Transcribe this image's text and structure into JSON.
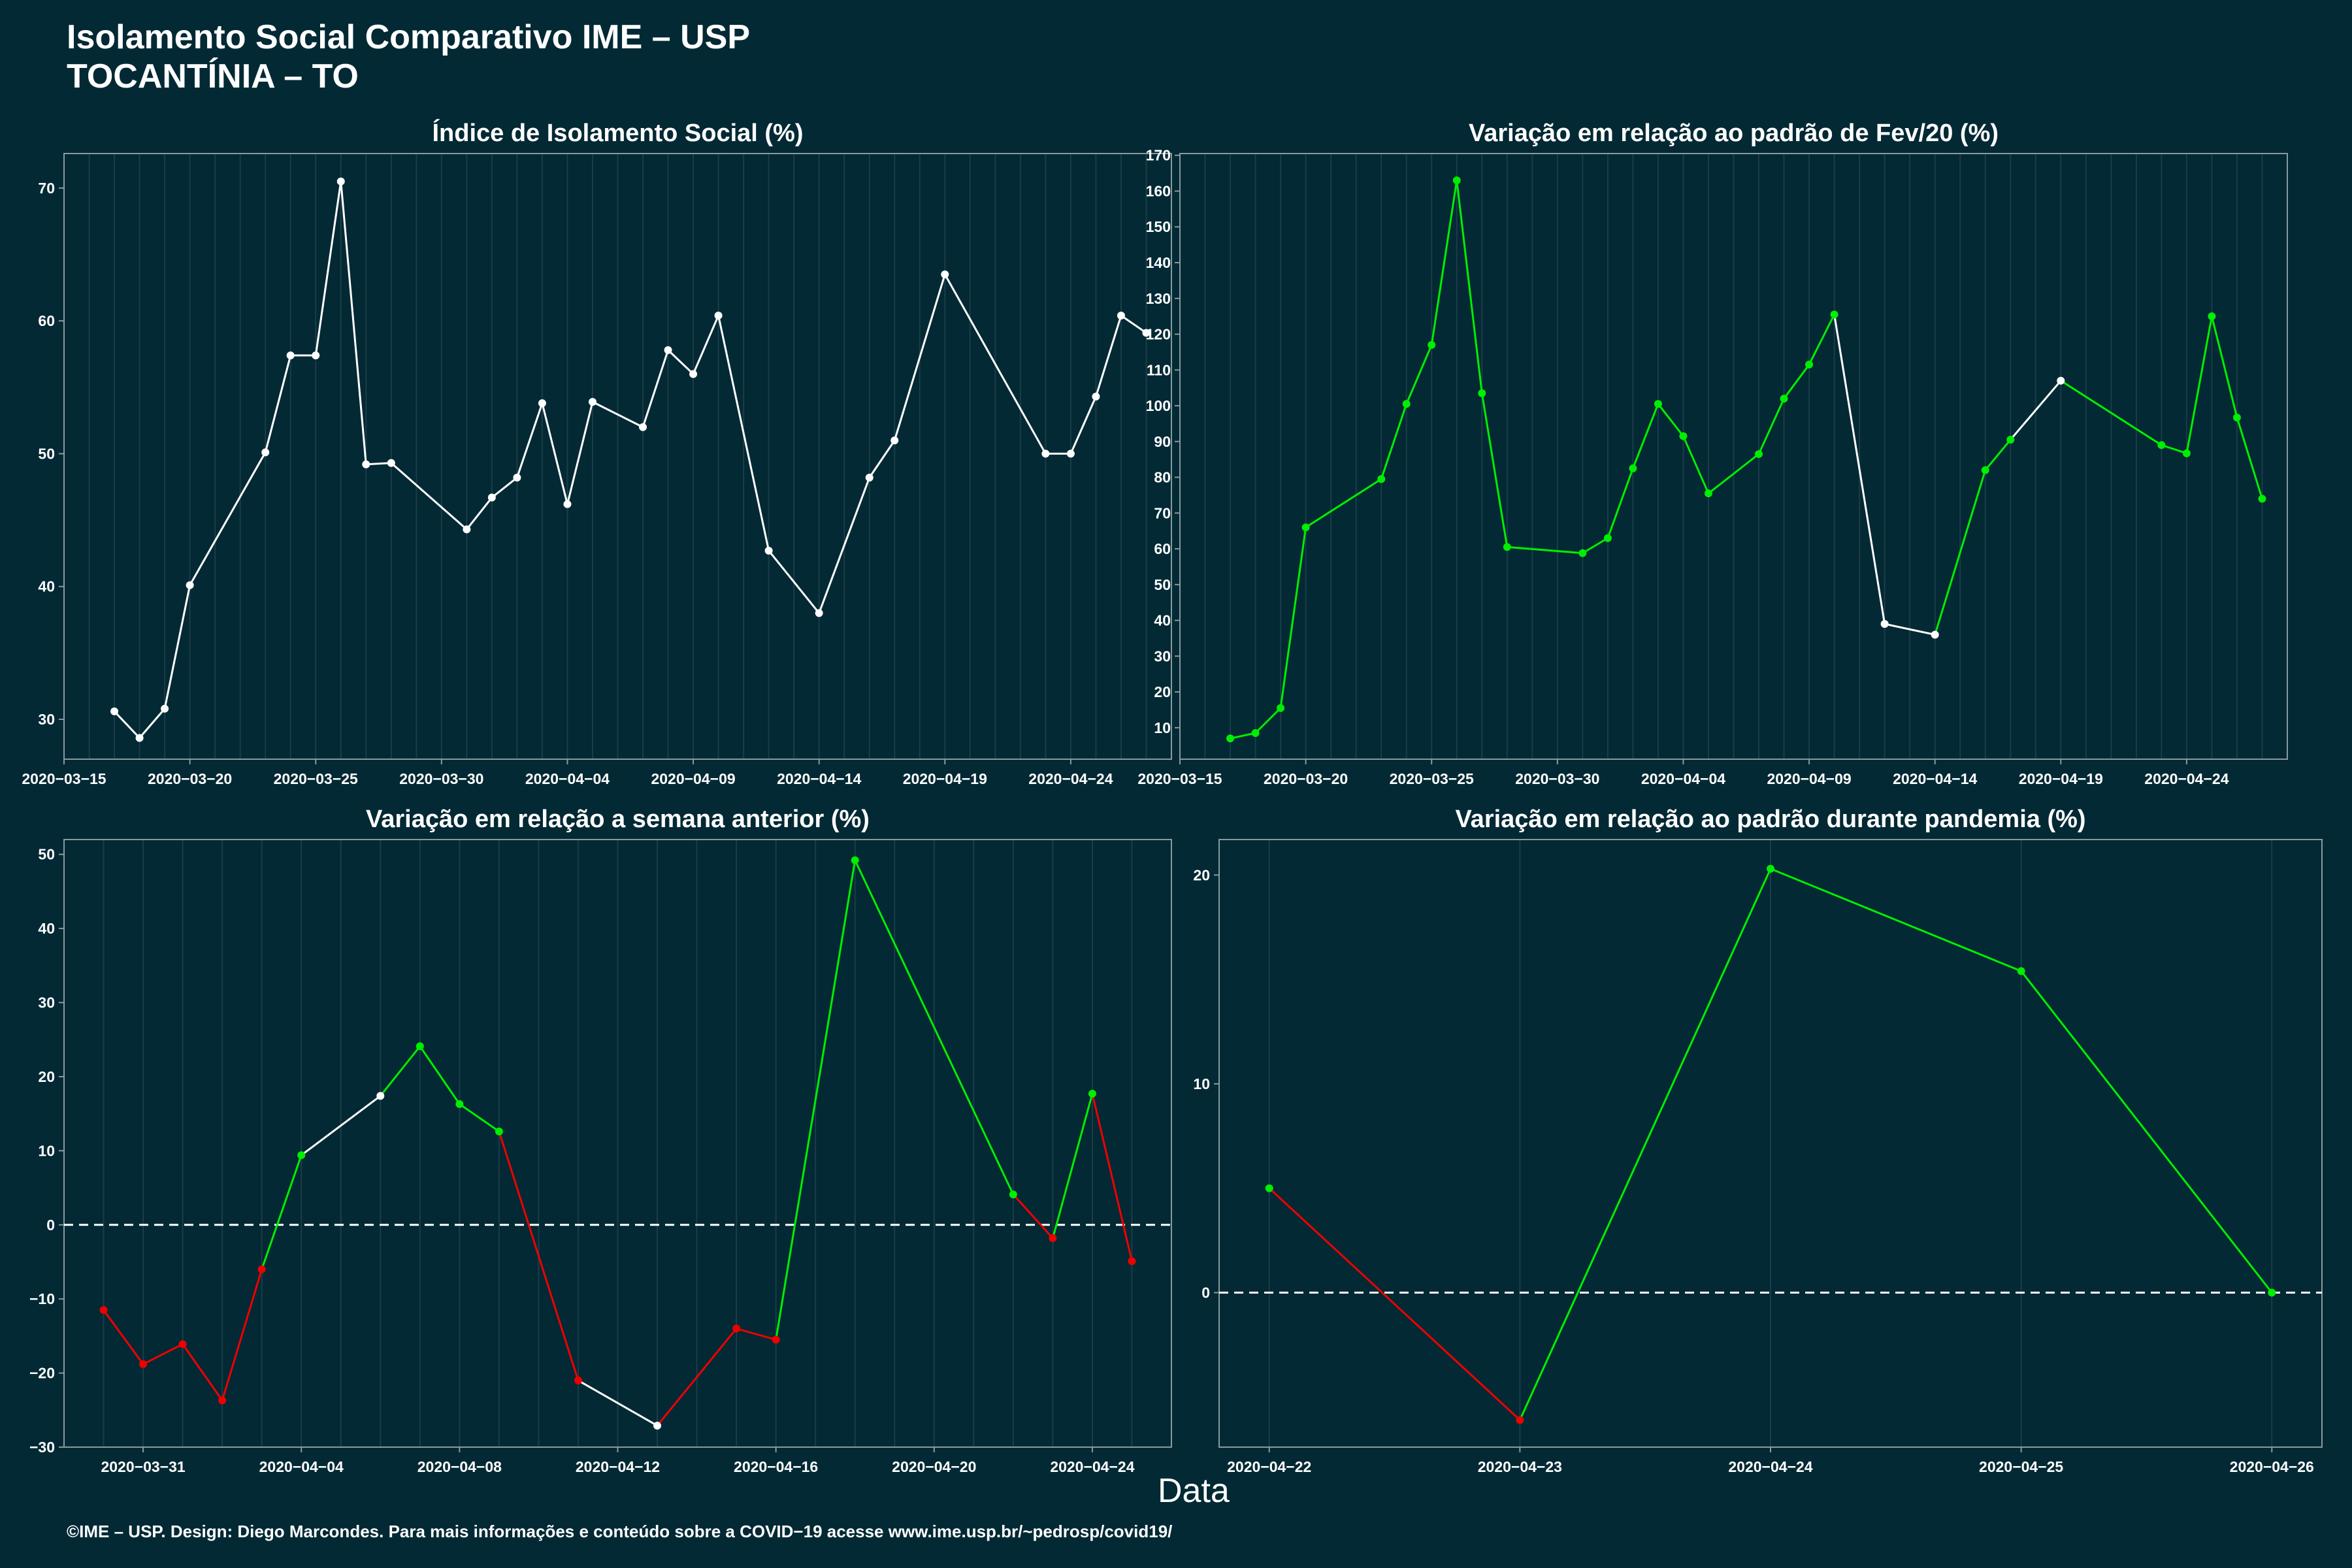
{
  "header": {
    "title_line1": "Isolamento Social Comparativo IME – USP",
    "title_line2": "TOCANTÍNIA – TO"
  },
  "xlabel": "Data",
  "footer": "©IME – USP. Design: Diego Marcondes. Para mais informações e conteúdo sobre a COVID−19 acesse www.ime.usp.br/~pedrosp/covid19/",
  "colors": {
    "background": "#022934",
    "rising": "#00ee00",
    "falling": "#ee0000",
    "neutral": "#ffffff",
    "panel_border": "#8a9a9e",
    "grid": "#1c3d48"
  },
  "chart_data": [
    {
      "id": "isolamento",
      "type": "line",
      "title": "Índice de Isolamento Social (%)",
      "color_mode": "white",
      "zero_line": false,
      "x_is_date": true,
      "x": [
        "2020-03-17",
        "2020-03-18",
        "2020-03-19",
        "2020-03-20",
        "2020-03-23",
        "2020-03-24",
        "2020-03-25",
        "2020-03-26",
        "2020-03-27",
        "2020-03-28",
        "2020-03-31",
        "2020-04-01",
        "2020-04-02",
        "2020-04-03",
        "2020-04-04",
        "2020-04-05",
        "2020-04-07",
        "2020-04-08",
        "2020-04-09",
        "2020-04-10",
        "2020-04-12",
        "2020-04-14",
        "2020-04-16",
        "2020-04-17",
        "2020-04-19",
        "2020-04-23",
        "2020-04-24",
        "2020-04-25",
        "2020-04-26",
        "2020-04-27"
      ],
      "y": [
        30.6,
        28.6,
        30.8,
        40.1,
        50.1,
        57.4,
        57.4,
        70.5,
        49.2,
        49.3,
        44.3,
        46.7,
        48.2,
        53.8,
        46.2,
        53.9,
        52.0,
        57.8,
        56.0,
        60.4,
        42.7,
        38.0,
        48.2,
        51.0,
        63.5,
        50.0,
        50.0,
        54.3,
        60.4,
        59.1
      ],
      "xlim": [
        "2020-03-15",
        "2020-04-28"
      ],
      "ylim": [
        27.0,
        72.6
      ],
      "x_ticks": [
        "2020-03-15",
        "2020-03-20",
        "2020-03-25",
        "2020-03-30",
        "2020-04-04",
        "2020-04-09",
        "2020-04-14",
        "2020-04-19",
        "2020-04-24"
      ],
      "y_ticks": [
        30,
        40,
        50,
        60,
        70
      ]
    },
    {
      "id": "fev20",
      "type": "line",
      "title": "Variação em relação ao padrão de Fev/20 (%)",
      "color_mode": "trend",
      "zero_line": false,
      "x_is_date": true,
      "x": [
        "2020-03-17",
        "2020-03-18",
        "2020-03-19",
        "2020-03-20",
        "2020-03-23",
        "2020-03-24",
        "2020-03-25",
        "2020-03-26",
        "2020-03-27",
        "2020-03-28",
        "2020-03-31",
        "2020-04-01",
        "2020-04-02",
        "2020-04-03",
        "2020-04-04",
        "2020-04-05",
        "2020-04-07",
        "2020-04-08",
        "2020-04-09",
        "2020-04-10",
        "2020-04-12",
        "2020-04-14",
        "2020-04-16",
        "2020-04-17",
        "2020-04-19",
        "2020-04-23",
        "2020-04-24",
        "2020-04-25",
        "2020-04-26",
        "2020-04-27"
      ],
      "y": [
        7.0,
        8.5,
        15.5,
        66.0,
        79.5,
        100.5,
        117.0,
        163.0,
        103.5,
        60.5,
        58.8,
        63.0,
        82.5,
        100.5,
        91.5,
        75.5,
        86.5,
        102.0,
        111.5,
        125.5,
        39.0,
        36.0,
        82.0,
        90.5,
        107.0,
        89.0,
        86.7,
        125.0,
        96.7,
        74.0
      ],
      "point_colors": [
        "green",
        "green",
        "green",
        "green",
        "green",
        "green",
        "green",
        "green",
        "green",
        "green",
        "green",
        "green",
        "green",
        "green",
        "green",
        "green",
        "green",
        "green",
        "green",
        "green",
        "white",
        "white",
        "green",
        "green",
        "white",
        "green",
        "green",
        "green",
        "green",
        "green"
      ],
      "xlim": [
        "2020-03-15",
        "2020-04-28"
      ],
      "ylim": [
        1.2,
        170.5
      ],
      "x_ticks": [
        "2020-03-15",
        "2020-03-20",
        "2020-03-25",
        "2020-03-30",
        "2020-04-04",
        "2020-04-09",
        "2020-04-14",
        "2020-04-19",
        "2020-04-24"
      ],
      "y_ticks": [
        10,
        20,
        30,
        40,
        50,
        60,
        70,
        80,
        90,
        100,
        110,
        120,
        130,
        140,
        150,
        160,
        170
      ]
    },
    {
      "id": "semana",
      "type": "line",
      "title": "Variação em relação a semana anterior (%)",
      "color_mode": "trend",
      "zero_line": true,
      "x_is_date": true,
      "x": [
        "2020-03-30",
        "2020-03-31",
        "2020-04-01",
        "2020-04-02",
        "2020-04-03",
        "2020-04-04",
        "2020-04-06",
        "2020-04-07",
        "2020-04-08",
        "2020-04-09",
        "2020-04-11",
        "2020-04-13",
        "2020-04-15",
        "2020-04-16",
        "2020-04-18",
        "2020-04-22",
        "2020-04-23",
        "2020-04-24",
        "2020-04-25"
      ],
      "y": [
        -11.5,
        -18.8,
        -16.1,
        -23.7,
        -6.0,
        9.4,
        17.4,
        24.1,
        16.3,
        12.6,
        -21.0,
        -27.1,
        -14.0,
        -15.5,
        49.2,
        4.1,
        -1.8,
        17.7,
        -4.9
      ],
      "point_colors": [
        "red",
        "red",
        "red",
        "red",
        "red",
        "green",
        "white",
        "green",
        "green",
        "green",
        "red",
        "white",
        "red",
        "red",
        "green",
        "green",
        "red",
        "green",
        "red"
      ],
      "xlim": [
        "2020-03-29",
        "2020-04-26"
      ],
      "ylim": [
        -30.0,
        52.0
      ],
      "x_ticks": [
        "2020-03-31",
        "2020-04-04",
        "2020-04-08",
        "2020-04-12",
        "2020-04-16",
        "2020-04-20",
        "2020-04-24"
      ],
      "y_ticks": [
        -30,
        -20,
        -10,
        0,
        10,
        20,
        30,
        40,
        50
      ]
    },
    {
      "id": "pandemia",
      "type": "line",
      "title": "Variação em relação ao padrão durante pandemia (%)",
      "color_mode": "trend",
      "zero_line": true,
      "x_is_date": true,
      "x": [
        "2020-04-22",
        "2020-04-23",
        "2020-04-24",
        "2020-04-25",
        "2020-04-26"
      ],
      "y": [
        5.0,
        -6.1,
        20.3,
        15.4,
        0.0
      ],
      "point_colors": [
        "green",
        "red",
        "green",
        "green",
        "green"
      ],
      "xlim": [
        "2020-04-21.8",
        "2020-04-26.2"
      ],
      "ylim": [
        -7.4,
        21.7
      ],
      "x_ticks": [
        "2020-04-22",
        "2020-04-23",
        "2020-04-24",
        "2020-04-25",
        "2020-04-26"
      ],
      "y_ticks": [
        0,
        10,
        20
      ]
    }
  ]
}
